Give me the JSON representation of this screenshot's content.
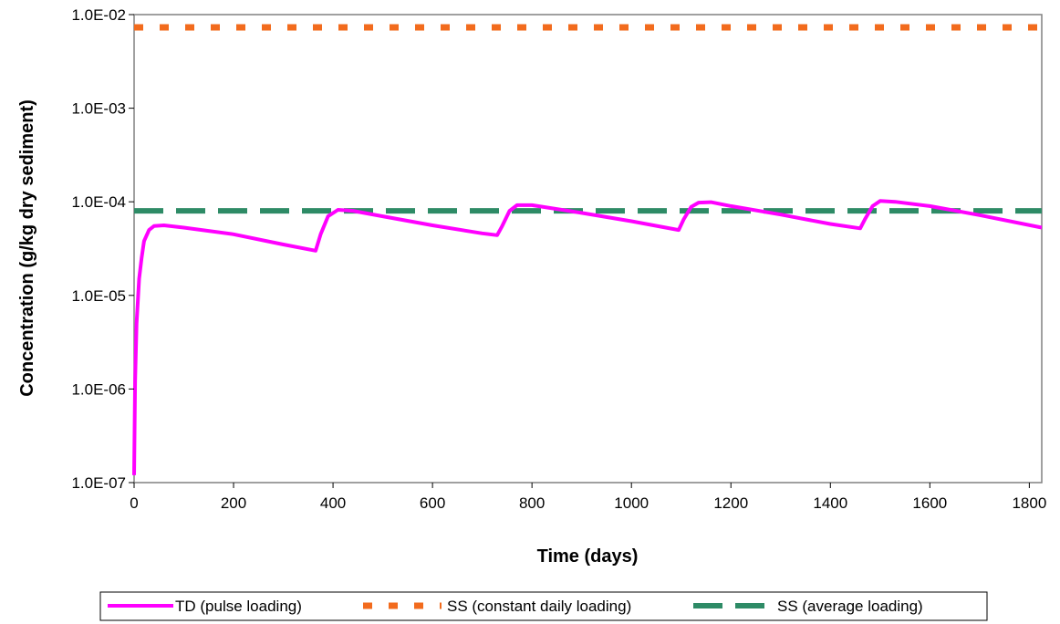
{
  "chart_data": {
    "type": "line",
    "xlabel": "Time (days)",
    "ylabel": "Concentration (g/kg dry sediment)",
    "y_scale": "log",
    "xlim": [
      0,
      1825
    ],
    "ylim": [
      1e-07,
      0.01
    ],
    "x_ticks": [
      0,
      200,
      400,
      600,
      800,
      1000,
      1200,
      1400,
      1600,
      1800
    ],
    "x_tick_labels": [
      "0",
      "200",
      "400",
      "600",
      "800",
      "1000",
      "1200",
      "1400",
      "1600",
      "1800"
    ],
    "y_ticks": [
      1e-07,
      1e-06,
      1e-05,
      0.0001,
      0.001,
      0.01
    ],
    "y_tick_labels": [
      "1.0E-07",
      "1.0E-06",
      "1.0E-05",
      "1.0E-04",
      "1.0E-03",
      "1.0E-02"
    ],
    "grid": false,
    "legend_position": "bottom",
    "series": [
      {
        "name": "TD (pulse loading)",
        "color": "#FF00FF",
        "style": "solid",
        "x": [
          0,
          2,
          5,
          10,
          15,
          20,
          30,
          40,
          60,
          100,
          200,
          300,
          365,
          375,
          390,
          410,
          440,
          500,
          600,
          700,
          730,
          740,
          755,
          770,
          800,
          900,
          1000,
          1095,
          1105,
          1120,
          1135,
          1160,
          1200,
          1300,
          1400,
          1460,
          1470,
          1485,
          1500,
          1530,
          1600,
          1700,
          1825
        ],
        "y": [
          1.2e-07,
          1.2e-06,
          5e-06,
          1.5e-05,
          2.5e-05,
          3.8e-05,
          5e-05,
          5.5e-05,
          5.6e-05,
          5.3e-05,
          4.5e-05,
          3.5e-05,
          3e-05,
          4.5e-05,
          7e-05,
          8.2e-05,
          8e-05,
          7e-05,
          5.6e-05,
          4.6e-05,
          4.4e-05,
          5.5e-05,
          8e-05,
          9.2e-05,
          9.2e-05,
          7.6e-05,
          6.2e-05,
          5e-05,
          6.5e-05,
          8.8e-05,
          9.8e-05,
          9.9e-05,
          9e-05,
          7.3e-05,
          5.8e-05,
          5.2e-05,
          6.6e-05,
          9e-05,
          0.000102,
          0.0001,
          9e-05,
          7.2e-05,
          5.3e-05
        ]
      },
      {
        "name": "SS (constant daily loading)",
        "color": "#F26B1D",
        "style": "dotted",
        "x": [
          0,
          1825
        ],
        "y": [
          0.0073,
          0.0073
        ]
      },
      {
        "name": "SS (average loading)",
        "color": "#2E8B66",
        "style": "dashed",
        "x": [
          0,
          1825
        ],
        "y": [
          8e-05,
          8e-05
        ]
      }
    ]
  }
}
